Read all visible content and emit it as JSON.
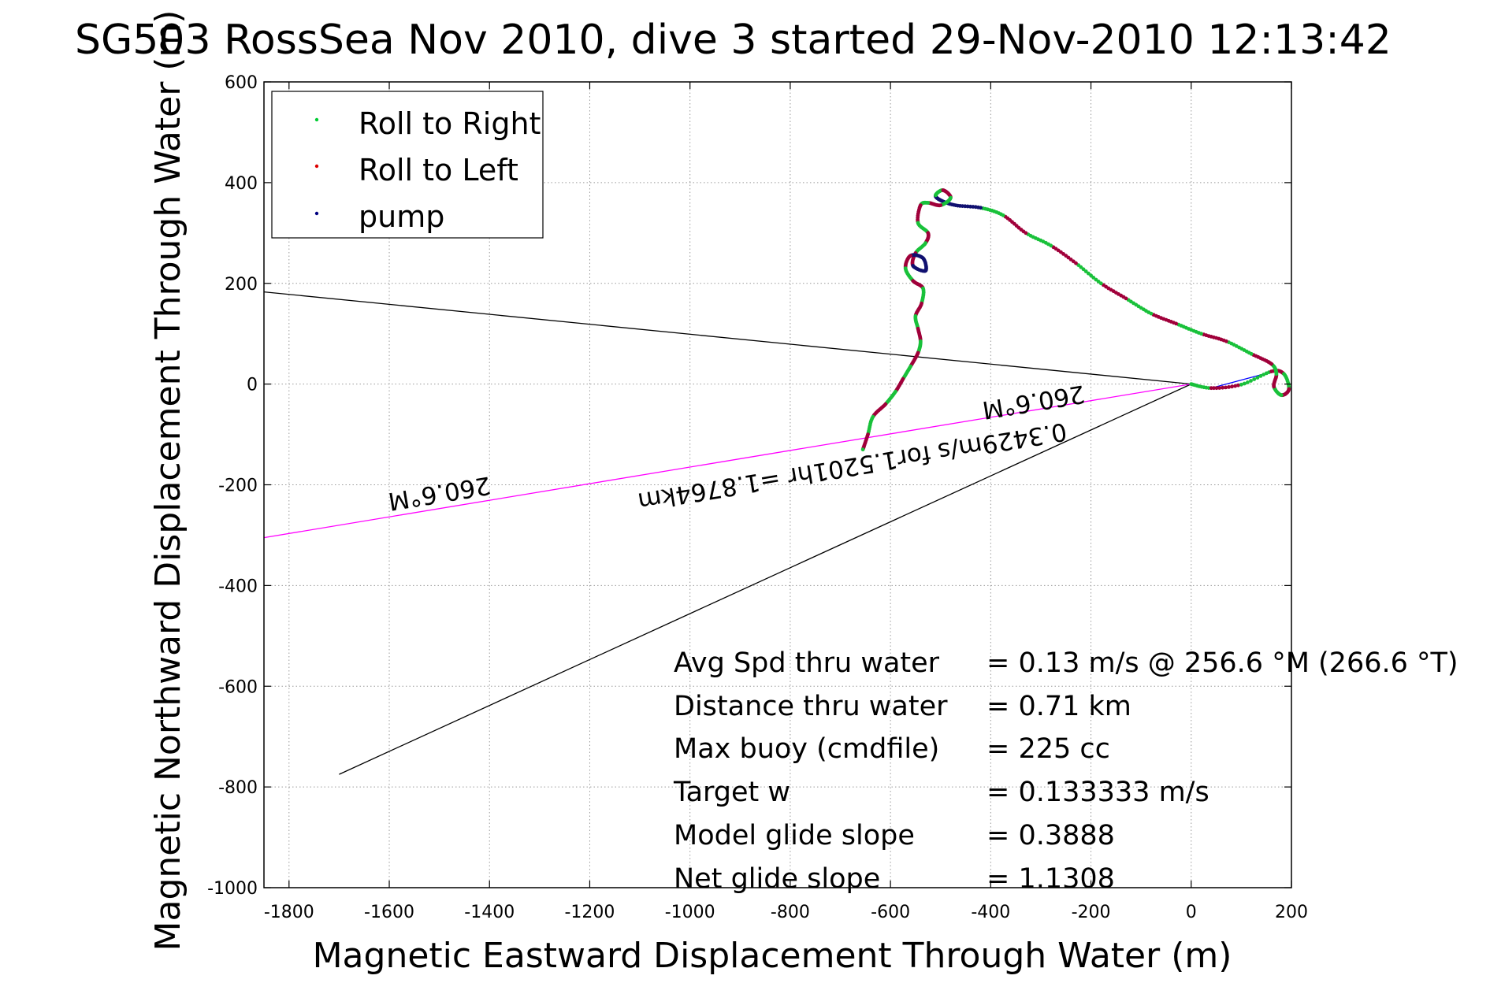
{
  "chart_data": {
    "type": "scatter",
    "title": "SG503 RossSea Nov 2010, dive 3 started 29-Nov-2010 12:13:42",
    "xlabel": "Magnetic Eastward Displacement Through Water (m)",
    "ylabel": "Magnetic Northward Displacement Through Water (m)",
    "xlim": [
      -1850,
      200
    ],
    "ylim": [
      -1000,
      600
    ],
    "xticks": [
      -1800,
      -1600,
      -1400,
      -1200,
      -1000,
      -800,
      -600,
      -400,
      -200,
      0,
      200
    ],
    "yticks": [
      600,
      400,
      200,
      0,
      -200,
      -400,
      -600,
      -800,
      -1000
    ],
    "grid": true,
    "legend_position": "top-left",
    "legend": [
      {
        "label": "Roll to Right",
        "color": "#00cc33"
      },
      {
        "label": "Roll to Left",
        "color": "#dd0000"
      },
      {
        "label": "pump",
        "color": "#000080"
      }
    ],
    "track_colors": {
      "right": "#19c13a",
      "left": "#a0003a",
      "pump": "#101070"
    },
    "track": [
      [
        0,
        0
      ],
      [
        40,
        -8
      ],
      [
        100,
        -1
      ],
      [
        160,
        25
      ],
      [
        185,
        20
      ],
      [
        195,
        -10
      ],
      [
        180,
        -22
      ],
      [
        165,
        -5
      ],
      [
        170,
        20
      ],
      [
        160,
        40
      ],
      [
        120,
        60
      ],
      [
        70,
        85
      ],
      [
        20,
        100
      ],
      [
        -30,
        120
      ],
      [
        -80,
        140
      ],
      [
        -130,
        170
      ],
      [
        -180,
        200
      ],
      [
        -230,
        240
      ],
      [
        -280,
        275
      ],
      [
        -330,
        300
      ],
      [
        -375,
        335
      ],
      [
        -420,
        350
      ],
      [
        -470,
        355
      ],
      [
        -500,
        365
      ],
      [
        -510,
        375
      ],
      [
        -495,
        385
      ],
      [
        -480,
        370
      ],
      [
        -500,
        355
      ],
      [
        -525,
        360
      ],
      [
        -540,
        355
      ],
      [
        -545,
        320
      ],
      [
        -525,
        300
      ],
      [
        -530,
        280
      ],
      [
        -550,
        260
      ],
      [
        -555,
        235
      ],
      [
        -530,
        225
      ],
      [
        -535,
        250
      ],
      [
        -560,
        255
      ],
      [
        -570,
        230
      ],
      [
        -555,
        205
      ],
      [
        -535,
        190
      ],
      [
        -538,
        160
      ],
      [
        -550,
        135
      ],
      [
        -545,
        110
      ],
      [
        -540,
        85
      ],
      [
        -545,
        62
      ],
      [
        -560,
        35
      ],
      [
        -575,
        10
      ],
      [
        -590,
        -15
      ],
      [
        -610,
        -40
      ],
      [
        -635,
        -65
      ],
      [
        -645,
        -100
      ],
      [
        -655,
        -130
      ]
    ],
    "lines": [
      {
        "name": "black_upper",
        "color": "#000000",
        "points": [
          [
            0,
            0
          ],
          [
            -1850,
            183
          ]
        ]
      },
      {
        "name": "black_lower",
        "color": "#000000",
        "points": [
          [
            0,
            0
          ],
          [
            -1700,
            -775
          ]
        ]
      },
      {
        "name": "magenta_heading",
        "color": "#ff00ff",
        "points": [
          [
            0,
            0
          ],
          [
            -1850,
            -305
          ]
        ]
      },
      {
        "name": "blue_current",
        "color": "#0000ff",
        "points": [
          [
            0,
            0
          ],
          [
            40,
            -8
          ],
          [
            175,
            28
          ]
        ]
      }
    ],
    "annotations": {
      "speed_label": "0.3429m/s for1.5201hr =1.8764km",
      "heading_label_near": "260.6°M",
      "heading_label_far": "260.6°M"
    },
    "stats": [
      {
        "label": "Avg Spd thru water",
        "value": "=  0.13 m/s @ 256.6 °M (266.6 °T)"
      },
      {
        "label": "Distance thru water",
        "value": "=  0.71 km"
      },
      {
        "label": "Max buoy (cmdfile)",
        "value": "= 225 cc"
      },
      {
        "label": "Target w",
        "value": "= 0.133333 m/s"
      },
      {
        "label": "Model glide slope",
        "value": "= 0.3888"
      },
      {
        "label": "Net glide slope",
        "value": "= 1.1308"
      }
    ]
  }
}
